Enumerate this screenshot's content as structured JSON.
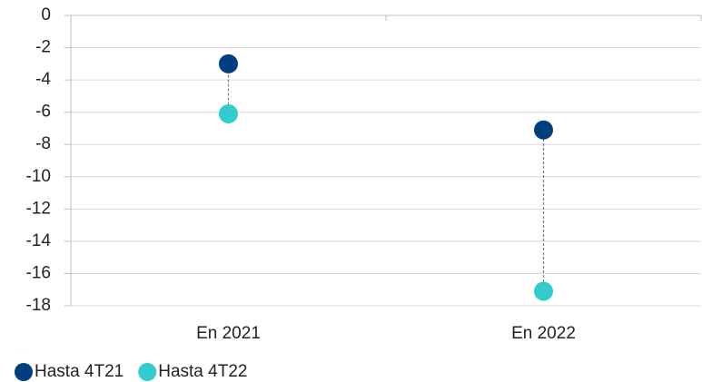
{
  "chart_data": {
    "type": "dumbbell",
    "categories": [
      "En 2021",
      "En 2022"
    ],
    "series": [
      {
        "name": "Hasta 4T21",
        "color": "#003f7d",
        "values": [
          -3.0,
          -7.1
        ]
      },
      {
        "name": "Hasta 4T22",
        "color": "#33cccc",
        "values": [
          -6.1,
          -17.1
        ]
      }
    ],
    "ylim": [
      0,
      -18
    ],
    "yticks": [
      0,
      -2,
      -4,
      -6,
      -8,
      -10,
      -12,
      -14,
      -16,
      -18
    ],
    "grid": true,
    "legend": "bottom"
  }
}
